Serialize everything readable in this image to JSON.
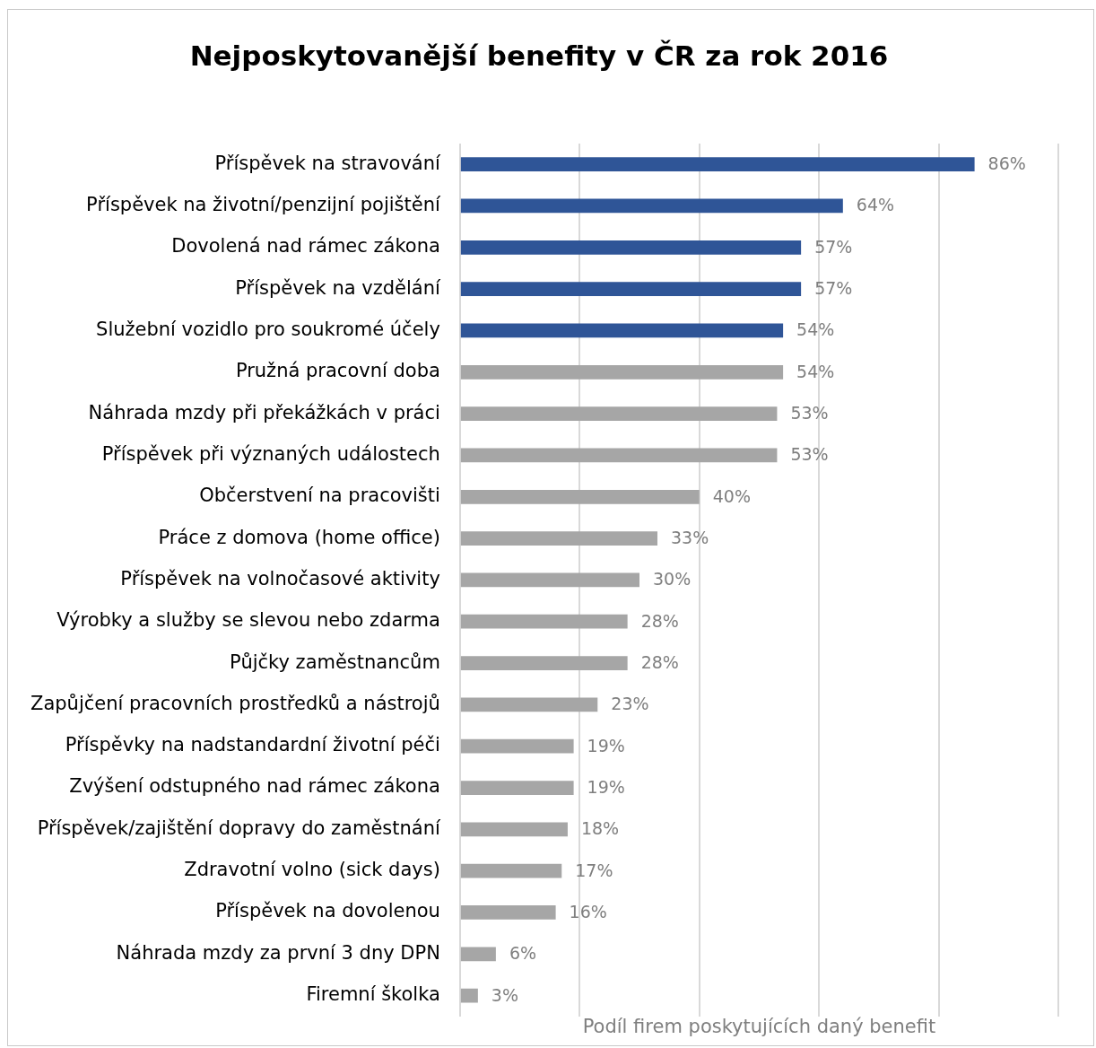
{
  "chart_data": {
    "type": "bar",
    "orientation": "horizontal",
    "title": "Nejposkytovanější benefity v ČR za rok 2016",
    "xlabel": "Podíl firem poskytujících daný benefit",
    "categories": [
      "Příspěvek na stravování",
      "Příspěvek na životní/penzijní pojištění",
      "Dovolená nad rámec zákona",
      "Příspěvek na vzdělání",
      "Služební vozidlo pro soukromé účely",
      "Pružná pracovní doba",
      "Náhrada mzdy při překážkách v práci",
      "Příspěvek při význaných událostech",
      "Občerstvení na pracovišti",
      "Práce z domova (home office)",
      "Příspěvek na volnočasové aktivity",
      "Výrobky a služby se slevou nebo zdarma",
      "Půjčky zaměstnancům",
      "Zapůjčení pracovních prostředků a nástrojů",
      "Příspěvky na nadstandardní životní péči",
      "Zvýšení odstupného nad rámec zákona",
      "Příspěvek/zajištění dopravy do zaměstnání",
      "Zdravotní volno (sick days)",
      "Příspěvek na dovolenou",
      "Náhrada mzdy za první 3 dny DPN",
      "Firemní školka"
    ],
    "values": [
      86,
      64,
      57,
      57,
      54,
      54,
      53,
      53,
      40,
      33,
      30,
      28,
      28,
      23,
      19,
      19,
      18,
      17,
      16,
      6,
      3
    ],
    "value_labels": [
      "86%",
      "64%",
      "57%",
      "57%",
      "54%",
      "54%",
      "53%",
      "53%",
      "40%",
      "33%",
      "30%",
      "28%",
      "28%",
      "23%",
      "19%",
      "19%",
      "18%",
      "17%",
      "16%",
      "6%",
      "3%"
    ],
    "colors": [
      "#2f5597",
      "#2f5597",
      "#2f5597",
      "#2f5597",
      "#2f5597",
      "#a6a6a6",
      "#a6a6a6",
      "#a6a6a6",
      "#a6a6a6",
      "#a6a6a6",
      "#a6a6a6",
      "#a6a6a6",
      "#a6a6a6",
      "#a6a6a6",
      "#a6a6a6",
      "#a6a6a6",
      "#a6a6a6",
      "#a6a6a6",
      "#a6a6a6",
      "#a6a6a6",
      "#a6a6a6"
    ],
    "xlim": [
      0,
      100
    ],
    "xticks": [
      {
        "value": 0,
        "label": null
      },
      {
        "value": 20,
        "label": null
      },
      {
        "value": 40,
        "label": null
      },
      {
        "value": 60,
        "label": null
      },
      {
        "value": 80,
        "label": null
      },
      {
        "value": 100,
        "label": null
      }
    ],
    "grid": "x",
    "tick_labels": "y",
    "legend": false
  }
}
